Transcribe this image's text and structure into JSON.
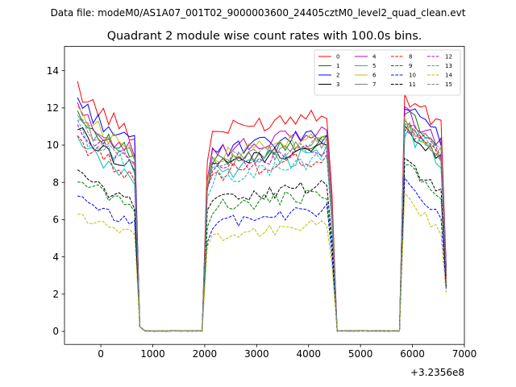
{
  "suptitle": "Data file: modeM0/AS1A07_001T02_9000003600_24405cztM0_level2_quad_clean.evt",
  "chart_data": {
    "type": "line",
    "title": "Quadrant 2 module wise count rates with 100.0s bins.",
    "xlabel": "",
    "ylabel": "",
    "x_offset_label": "+3.2356e8",
    "xlim": [
      -700,
      7000
    ],
    "ylim": [
      -0.7,
      15.3
    ],
    "xticks": [
      "0",
      "1000",
      "2000",
      "3000",
      "4000",
      "5000",
      "6000",
      "7000"
    ],
    "yticks": [
      "0",
      "2",
      "4",
      "6",
      "8",
      "10",
      "12",
      "14"
    ],
    "grid": false,
    "legend_position": "top-right",
    "x": [
      -450,
      -350,
      -250,
      -150,
      -50,
      50,
      150,
      250,
      350,
      450,
      550,
      650,
      750,
      850,
      950,
      1050,
      1150,
      1250,
      1350,
      1450,
      1550,
      1650,
      1750,
      1850,
      1950,
      2050,
      2150,
      2250,
      2350,
      2450,
      2550,
      2650,
      2750,
      2850,
      2950,
      3050,
      3150,
      3250,
      3350,
      3450,
      3550,
      3650,
      3750,
      3850,
      3950,
      4050,
      4150,
      4250,
      4350,
      4450,
      4550,
      4650,
      4750,
      4850,
      4950,
      5050,
      5150,
      5250,
      5350,
      5450,
      5550,
      5650,
      5750,
      5850,
      5950,
      6050,
      6150,
      6250,
      6350,
      6450,
      6550,
      6650
    ],
    "segments": [
      [
        0,
        13
      ],
      [
        13,
        25
      ],
      [
        25,
        50
      ],
      [
        50,
        63
      ],
      [
        63,
        72
      ]
    ],
    "series": [
      {
        "name": "0",
        "color": "#ff0000",
        "dash": "solid",
        "level1": 13.2,
        "level2": 10.6,
        "level3": 11.5,
        "amp": 0.3
      },
      {
        "name": "1",
        "color": "#008000",
        "dash": "solid",
        "level1": 11.8,
        "level2": 9.1,
        "level3": 10.6,
        "amp": 0.25
      },
      {
        "name": "2",
        "color": "#0000ff",
        "dash": "solid",
        "level1": 12.6,
        "level2": 9.5,
        "level3": 10.9,
        "amp": 0.28
      },
      {
        "name": "3",
        "color": "#000000",
        "dash": "solid",
        "level1": 11.0,
        "level2": 8.9,
        "level3": 9.8,
        "amp": 0.25
      },
      {
        "name": "4",
        "color": "#bf00bf",
        "dash": "solid",
        "level1": 12.0,
        "level2": 9.6,
        "level3": 10.6,
        "amp": 0.28
      },
      {
        "name": "5",
        "color": "#00bfbf",
        "dash": "solid",
        "level1": 10.2,
        "level2": 8.6,
        "level3": 9.6,
        "amp": 0.35
      },
      {
        "name": "6",
        "color": "#bfbf00",
        "dash": "solid",
        "level1": 12.1,
        "level2": 9.3,
        "level3": 10.2,
        "amp": 0.28
      },
      {
        "name": "7",
        "color": "#808080",
        "dash": "solid",
        "level1": 11.6,
        "level2": 9.0,
        "level3": 10.0,
        "amp": 0.28
      },
      {
        "name": "8",
        "color": "#ff0000",
        "dash": "dashed",
        "level1": 10.5,
        "level2": 8.4,
        "level3": 9.8,
        "amp": 0.3
      },
      {
        "name": "9",
        "color": "#008000",
        "dash": "dashed",
        "level1": 8.4,
        "level2": 6.6,
        "level3": 7.8,
        "amp": 0.25
      },
      {
        "name": "10",
        "color": "#0000ff",
        "dash": "dashed",
        "level1": 7.2,
        "level2": 5.8,
        "level3": 6.7,
        "amp": 0.22
      },
      {
        "name": "11",
        "color": "#000000",
        "dash": "dashed",
        "level1": 8.6,
        "level2": 7.0,
        "level3": 8.0,
        "amp": 0.22
      },
      {
        "name": "12",
        "color": "#bf00bf",
        "dash": "dashed",
        "level1": 11.2,
        "level2": 8.7,
        "level3": 10.0,
        "amp": 0.28
      },
      {
        "name": "13",
        "color": "#00bfbf",
        "dash": "dashed",
        "level1": 11.0,
        "level2": 8.2,
        "level3": 9.9,
        "amp": 0.3
      },
      {
        "name": "14",
        "color": "#bfbf00",
        "dash": "dashed",
        "level1": 6.4,
        "level2": 5.1,
        "level3": 6.0,
        "amp": 0.22
      },
      {
        "name": "15",
        "color": "#808080",
        "dash": "dashed",
        "level1": 11.4,
        "level2": 9.0,
        "level3": 10.0,
        "amp": 0.28
      }
    ]
  }
}
